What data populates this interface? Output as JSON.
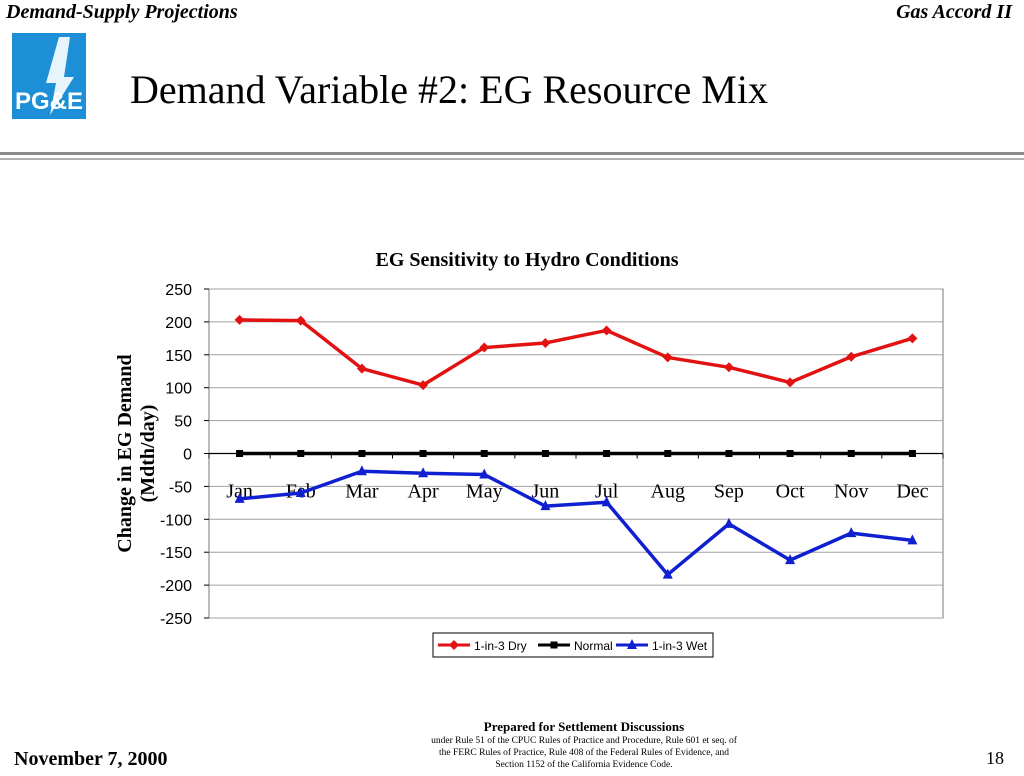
{
  "header": {
    "left_text": "Demand-Supply Projections",
    "right_text": "Gas Accord II",
    "logo_text": "PG&E",
    "title": "Demand Variable #2:  EG Resource Mix"
  },
  "footer": {
    "date": "November 7, 2000",
    "page_number": "18",
    "notice_title": "Prepared for Settlement Discussions",
    "notice_lines": [
      "under Rule 51 of the CPUC Rules of Practice and Procedure, Rule 601 et seq. of",
      "the FERC Rules of Practice, Rule 408 of the Federal Rules of Evidence, and",
      "Section 1152 of the California Evidence Code."
    ]
  },
  "colors": {
    "dry": "#e31212",
    "normal": "#000000",
    "wet": "#1020d0",
    "logo_blue": "#1c8fd6",
    "logo_orange": "#f7a21b"
  },
  "chart_data": {
    "type": "line",
    "title": "EG Sensitivity to Hydro Conditions",
    "ylabel": "Change in EG Demand (Mdth/day)",
    "ylabel_lines": [
      "Change in EG Demand",
      "(Mdth/day)"
    ],
    "xlabel": "",
    "ylim": [
      -250,
      250
    ],
    "yticks": [
      "250",
      "200",
      "150",
      "100",
      "50",
      "0",
      "-50",
      "-100",
      "-150",
      "-200",
      "-250"
    ],
    "categories": [
      "Jan",
      "Feb",
      "Mar",
      "Apr",
      "May",
      "Jun",
      "Jul",
      "Aug",
      "Sep",
      "Oct",
      "Nov",
      "Dec"
    ],
    "grid": true,
    "legend_position": "bottom",
    "series": [
      {
        "name": "1-in-3 Dry",
        "color": "#e31212",
        "marker": "diamond",
        "values": [
          203,
          202,
          129,
          104,
          161,
          168,
          187,
          146,
          131,
          108,
          147,
          175
        ]
      },
      {
        "name": "Normal",
        "color": "#000000",
        "marker": "square",
        "values": [
          0,
          0,
          0,
          0,
          0,
          0,
          0,
          0,
          0,
          0,
          0,
          0
        ]
      },
      {
        "name": "1-in-3 Wet",
        "color": "#1020d0",
        "marker": "triangle",
        "values": [
          -69,
          -60,
          -27,
          -30,
          -32,
          -80,
          -74,
          -184,
          -107,
          -162,
          -121,
          -132
        ]
      }
    ]
  }
}
